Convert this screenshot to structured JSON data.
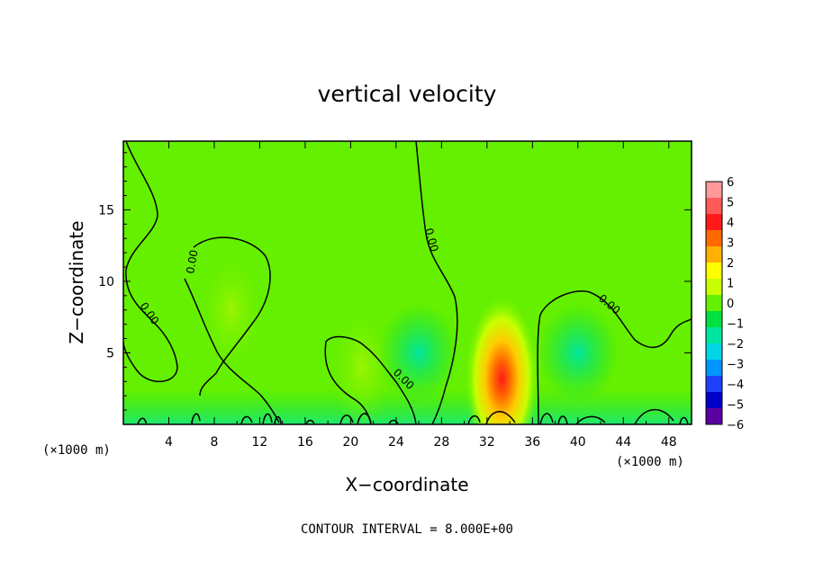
{
  "chart_data": {
    "type": "heatmap",
    "title": "vertical velocity",
    "xlabel": "X−coordinate",
    "ylabel": "Z−coordinate",
    "x_unit_label": "(×1000 m)",
    "x_unit_label_right": "(×1000 m)",
    "footer": "CONTOUR INTERVAL = 8.000E+00",
    "xlim": [
      0,
      50
    ],
    "ylim": [
      0,
      19.8
    ],
    "x_ticks": [
      "4",
      "8",
      "12",
      "16",
      "20",
      "24",
      "28",
      "32",
      "36",
      "40",
      "44",
      "48"
    ],
    "x_tick_values": [
      4,
      8,
      12,
      16,
      20,
      24,
      28,
      32,
      36,
      40,
      44,
      48
    ],
    "y_ticks": [
      "5",
      "10",
      "15"
    ],
    "y_tick_values": [
      5,
      10,
      15
    ],
    "contour_levels": [
      "0.00"
    ],
    "colorbar": {
      "min": -6,
      "max": 6,
      "tick_labels": [
        "6",
        "5",
        "4",
        "3",
        "2",
        "1",
        "0",
        "−1",
        "−2",
        "−3",
        "−4",
        "−5",
        "−6"
      ],
      "colors": [
        "#ff9a9a",
        "#ff5a5a",
        "#ff1a1a",
        "#ff6a00",
        "#ffb000",
        "#ffff00",
        "#c8ff00",
        "#64f000",
        "#00e040",
        "#00e6a0",
        "#00d6e6",
        "#0096ff",
        "#2040ff",
        "#0000c8",
        "#5a00a0"
      ]
    },
    "features": [
      {
        "name": "updraft",
        "x": 33.3,
        "z": 3.2,
        "peak": 5.5
      },
      {
        "name": "updraft-weak",
        "x": 9.5,
        "z": 8.0,
        "peak": 0.8
      },
      {
        "name": "updraft-weak",
        "x": 21.0,
        "z": 4.0,
        "peak": 0.8
      },
      {
        "name": "downdraft-weak",
        "x": 40.0,
        "z": 5.0,
        "peak": -0.8
      },
      {
        "name": "downdraft-weak",
        "x": 26.0,
        "z": 5.0,
        "peak": -0.6
      }
    ]
  }
}
